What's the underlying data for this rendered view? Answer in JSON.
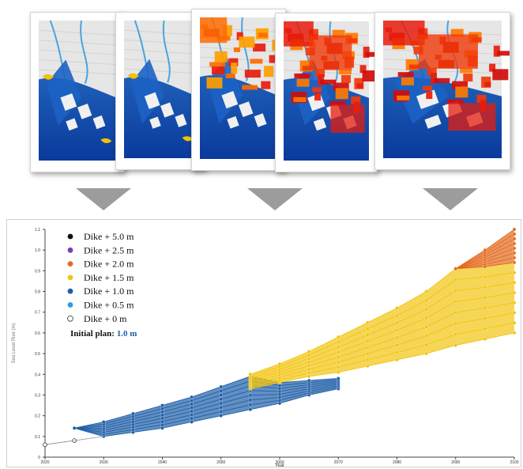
{
  "maps": [
    {
      "id": "map-1",
      "flood": "minimal"
    },
    {
      "id": "map-2",
      "flood": "minimal"
    },
    {
      "id": "map-3",
      "flood": "moderate"
    },
    {
      "id": "map-4",
      "flood": "heavy"
    },
    {
      "id": "map-5",
      "flood": "heavy"
    }
  ],
  "arrows": 3,
  "chart_data": {
    "type": "area",
    "xlabel": "Year",
    "ylabel": "Sea Level Rise (m)",
    "xlim": [
      2020,
      2100
    ],
    "ylim": [
      0,
      1.1
    ],
    "x_ticks": [
      "2020",
      "2030",
      "2040",
      "2050",
      "2060",
      "2070",
      "2080",
      "2090",
      "2100"
    ],
    "y_ticks": [
      "0",
      "0.1",
      "0.2",
      "0.3",
      "0.4",
      "0.5",
      "0.6",
      "0.7",
      "0.8",
      "0.9",
      "1.0",
      "1.1"
    ],
    "legend": [
      {
        "label": "Dike + 5.0 m",
        "color": "#111111",
        "hollow": false
      },
      {
        "label": "Dike + 2.5 m",
        "color": "#7b3fb0",
        "hollow": false
      },
      {
        "label": "Dike + 2.0 m",
        "color": "#e36a1e",
        "hollow": false
      },
      {
        "label": "Dike + 1.5 m",
        "color": "#f2c40f",
        "hollow": false
      },
      {
        "label": "Dike + 1.0 m",
        "color": "#1f5fa8",
        "hollow": false
      },
      {
        "label": "Dike + 0.5 m",
        "color": "#2f9ad6",
        "hollow": false
      },
      {
        "label": "Dike +  0   m",
        "color": "#ffffff",
        "hollow": true
      }
    ],
    "annotation": {
      "label": "Initial plan:",
      "value": "1.0 m",
      "value_color": "#1f5fa8"
    },
    "colors": {
      "dike_2_0": "#e36a1e",
      "dike_1_5": "#f2c40f",
      "dike_1_0": "#1f5fa8",
      "lines": "#bdbdbd"
    },
    "series": [
      {
        "x": [
          2020,
          2025
        ],
        "low": [
          0.06,
          0.08
        ],
        "high": [
          0.06,
          0.08
        ],
        "color_key": "white",
        "hollow": true
      },
      {
        "x": [
          2025,
          2030,
          2035,
          2040,
          2045,
          2050,
          2055,
          2060,
          2065,
          2070
        ],
        "low": [
          0.14,
          0.1,
          0.12,
          0.14,
          0.17,
          0.2,
          0.23,
          0.26,
          0.3,
          0.33
        ],
        "high": [
          0.14,
          0.17,
          0.21,
          0.25,
          0.29,
          0.34,
          0.39,
          0.36,
          0.37,
          0.38
        ],
        "color_key": "dike_1_0"
      },
      {
        "x": [
          2055,
          2060,
          2065,
          2070,
          2075,
          2080,
          2085,
          2090,
          2095,
          2100
        ],
        "low": [
          0.33,
          0.36,
          0.39,
          0.41,
          0.44,
          0.47,
          0.5,
          0.54,
          0.57,
          0.6
        ],
        "high": [
          0.4,
          0.45,
          0.51,
          0.58,
          0.65,
          0.72,
          0.8,
          0.91,
          0.92,
          0.94
        ],
        "color_key": "dike_1_5"
      },
      {
        "x": [
          2090,
          2095,
          2100
        ],
        "low": [
          0.91,
          0.92,
          0.94
        ],
        "high": [
          0.91,
          1.0,
          1.1
        ],
        "color_key": "dike_2_0"
      }
    ]
  }
}
